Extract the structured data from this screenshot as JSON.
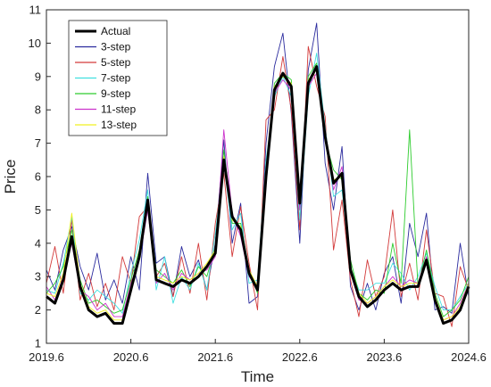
{
  "chart_data": {
    "type": "line",
    "xlabel": "Time",
    "ylabel": "Price",
    "xlim": [
      2019.6,
      2024.6
    ],
    "ylim": [
      1,
      11
    ],
    "xticks": [
      "2019.6",
      "2020.6",
      "2021.6",
      "2022.6",
      "2023.6",
      "2024.6"
    ],
    "yticks": [
      "1",
      "2",
      "3",
      "4",
      "5",
      "6",
      "7",
      "8",
      "9",
      "10",
      "11"
    ],
    "grid": false,
    "legend_position": "top-left",
    "x": [
      2019.6,
      2019.7,
      2019.8,
      2019.9,
      2020.0,
      2020.1,
      2020.2,
      2020.3,
      2020.4,
      2020.5,
      2020.6,
      2020.7,
      2020.8,
      2020.9,
      2021.0,
      2021.1,
      2021.2,
      2021.3,
      2021.4,
      2021.5,
      2021.6,
      2021.7,
      2021.8,
      2021.9,
      2022.0,
      2022.1,
      2022.2,
      2022.3,
      2022.4,
      2022.5,
      2022.6,
      2022.7,
      2022.8,
      2022.9,
      2023.0,
      2023.1,
      2023.2,
      2023.3,
      2023.4,
      2023.5,
      2023.6,
      2023.7,
      2023.8,
      2023.9,
      2024.0,
      2024.1,
      2024.2,
      2024.3,
      2024.4,
      2024.5,
      2024.6
    ],
    "series": [
      {
        "name": "Actual",
        "color": "#000000",
        "width": 3.0,
        "values": [
          2.4,
          2.2,
          2.9,
          4.2,
          2.7,
          2.0,
          1.8,
          1.9,
          1.6,
          1.6,
          2.6,
          3.6,
          5.3,
          2.9,
          2.8,
          2.7,
          2.9,
          2.8,
          3.0,
          3.3,
          3.7,
          6.5,
          4.8,
          4.4,
          3.1,
          2.6,
          6.0,
          8.6,
          9.1,
          8.7,
          5.2,
          8.8,
          9.3,
          7.2,
          5.8,
          6.1,
          3.2,
          2.4,
          2.1,
          2.3,
          2.6,
          2.8,
          2.6,
          2.7,
          2.7,
          3.5,
          2.3,
          1.6,
          1.7,
          2.0,
          2.7
        ]
      },
      {
        "name": "3-step",
        "color": "#2b2b9e",
        "width": 0.9,
        "values": [
          3.2,
          2.6,
          3.8,
          4.5,
          3.3,
          2.6,
          3.7,
          2.3,
          2.9,
          2.2,
          3.6,
          2.6,
          6.1,
          3.4,
          3.6,
          2.4,
          3.9,
          3.0,
          3.5,
          2.6,
          4.0,
          7.1,
          4.0,
          5.2,
          2.2,
          2.4,
          7.0,
          9.3,
          10.3,
          7.9,
          4.0,
          9.2,
          10.6,
          6.4,
          5.0,
          6.9,
          2.7,
          2.0,
          2.8,
          2.0,
          3.1,
          3.6,
          2.2,
          4.6,
          3.6,
          4.9,
          2.0,
          2.1,
          1.9,
          4.0,
          2.4
        ]
      },
      {
        "name": "5-step",
        "color": "#d33a3a",
        "width": 0.9,
        "values": [
          2.8,
          3.9,
          2.5,
          4.7,
          2.3,
          3.1,
          2.1,
          2.8,
          2.0,
          3.6,
          2.8,
          4.8,
          5.1,
          3.0,
          3.4,
          2.4,
          3.6,
          2.5,
          4.0,
          2.3,
          4.6,
          6.1,
          3.6,
          5.1,
          3.4,
          2.0,
          7.7,
          8.0,
          9.6,
          8.0,
          4.4,
          9.9,
          8.7,
          7.8,
          3.8,
          5.3,
          2.9,
          1.8,
          3.5,
          2.4,
          3.0,
          5.0,
          2.4,
          3.4,
          2.3,
          4.4,
          2.5,
          2.4,
          1.5,
          3.3,
          2.6
        ]
      },
      {
        "name": "7-step",
        "color": "#40e0e0",
        "width": 0.9,
        "values": [
          2.6,
          2.5,
          3.4,
          4.8,
          2.5,
          2.3,
          2.6,
          2.4,
          2.2,
          1.9,
          3.1,
          4.1,
          5.6,
          2.6,
          3.6,
          2.2,
          3.0,
          2.6,
          3.4,
          2.6,
          4.3,
          6.4,
          4.4,
          4.9,
          2.8,
          2.9,
          6.5,
          8.4,
          9.0,
          8.4,
          4.7,
          8.4,
          9.7,
          7.5,
          5.4,
          5.6,
          3.3,
          2.6,
          2.6,
          2.8,
          2.8,
          3.4,
          3.1,
          2.6,
          3.0,
          3.7,
          2.7,
          2.0,
          2.0,
          2.4,
          2.8
        ]
      },
      {
        "name": "9-step",
        "color": "#2ecc2e",
        "width": 0.9,
        "values": [
          2.5,
          2.8,
          3.3,
          4.4,
          2.9,
          2.2,
          2.3,
          2.1,
          1.9,
          2.0,
          2.9,
          3.8,
          5.4,
          3.2,
          3.0,
          2.8,
          3.2,
          2.7,
          3.3,
          3.0,
          3.9,
          6.8,
          4.6,
          4.6,
          3.2,
          2.5,
          5.8,
          8.8,
          9.1,
          8.9,
          5.5,
          9.0,
          9.4,
          7.1,
          6.2,
          5.9,
          3.5,
          2.5,
          2.3,
          2.6,
          2.5,
          4.0,
          2.8,
          7.4,
          2.7,
          3.8,
          2.5,
          1.8,
          2.0,
          2.3,
          3.0
        ]
      },
      {
        "name": "11-step",
        "color": "#cc33cc",
        "width": 0.9,
        "values": [
          2.7,
          2.3,
          3.0,
          4.0,
          2.6,
          2.4,
          2.0,
          2.2,
          1.8,
          1.8,
          2.8,
          3.5,
          5.0,
          2.8,
          3.1,
          2.6,
          3.1,
          2.9,
          3.1,
          3.2,
          3.6,
          7.4,
          4.9,
          4.2,
          3.0,
          2.7,
          6.2,
          8.5,
          8.9,
          8.6,
          5.0,
          8.7,
          9.1,
          7.3,
          5.6,
          6.3,
          3.1,
          2.3,
          2.2,
          2.4,
          2.7,
          3.0,
          2.7,
          2.9,
          2.8,
          3.6,
          2.4,
          1.7,
          1.8,
          2.2,
          2.8
        ]
      },
      {
        "name": "13-step",
        "color": "#f0f020",
        "width": 0.9,
        "values": [
          2.5,
          2.4,
          3.1,
          4.9,
          2.8,
          2.1,
          1.9,
          2.0,
          1.7,
          1.7,
          2.7,
          3.7,
          5.2,
          3.0,
          2.9,
          2.8,
          3.0,
          2.9,
          3.1,
          3.4,
          3.8,
          6.6,
          4.7,
          4.5,
          3.2,
          2.7,
          5.9,
          8.7,
          9.0,
          8.8,
          5.3,
          8.9,
          9.2,
          7.3,
          5.9,
          6.0,
          3.3,
          2.5,
          2.2,
          2.4,
          2.7,
          2.9,
          2.7,
          2.8,
          2.8,
          3.4,
          2.4,
          1.7,
          1.8,
          2.1,
          2.8
        ]
      }
    ]
  }
}
